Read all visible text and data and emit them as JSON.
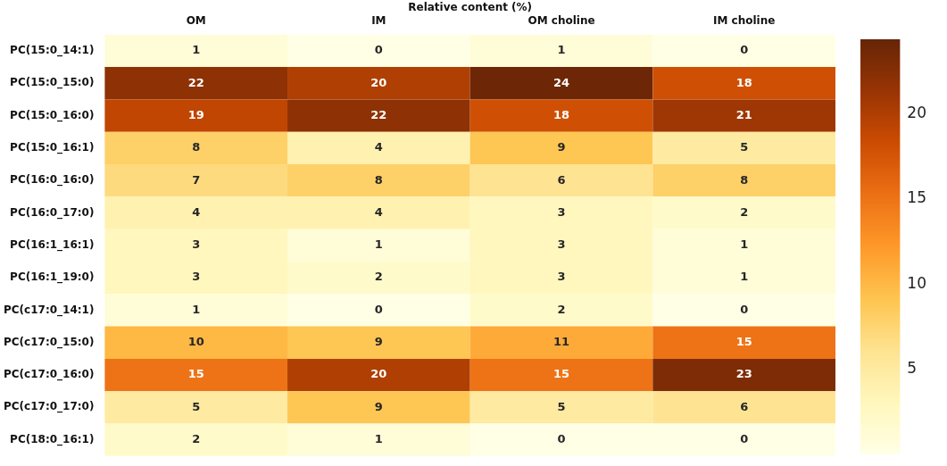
{
  "chart_data": {
    "type": "heatmap",
    "xlabel": "Relative content (%)",
    "categories": [
      "OM",
      "IM",
      "OM choline",
      "IM choline"
    ],
    "y_categories": [
      "PC(15:0_14:1)",
      "PC(15:0_15:0)",
      "PC(15:0_16:0)",
      "PC(15:0_16:1)",
      "PC(16:0_16:0)",
      "PC(16:0_17:0)",
      "PC(16:1_16:1)",
      "PC(16:1_19:0)",
      "PC(c17:0_14:1)",
      "PC(c17:0_15:0)",
      "PC(c17:0_16:0)",
      "PC(c17:0_17:0)",
      "PC(18:0_16:1)"
    ],
    "cells": [
      [
        1,
        0,
        1,
        0
      ],
      [
        22,
        20,
        24,
        18
      ],
      [
        19,
        22,
        18,
        21
      ],
      [
        8,
        4,
        9,
        5
      ],
      [
        7,
        8,
        6,
        8
      ],
      [
        4,
        4,
        3,
        2
      ],
      [
        3,
        1,
        3,
        1
      ],
      [
        3,
        2,
        3,
        1
      ],
      [
        1,
        0,
        2,
        0
      ],
      [
        10,
        9,
        11,
        15
      ],
      [
        15,
        20,
        15,
        23
      ],
      [
        5,
        9,
        5,
        6
      ],
      [
        2,
        1,
        0,
        0
      ]
    ],
    "data_labels": true,
    "clim": [
      0,
      24.4
    ],
    "cticks": [
      5,
      10,
      15,
      20
    ]
  }
}
